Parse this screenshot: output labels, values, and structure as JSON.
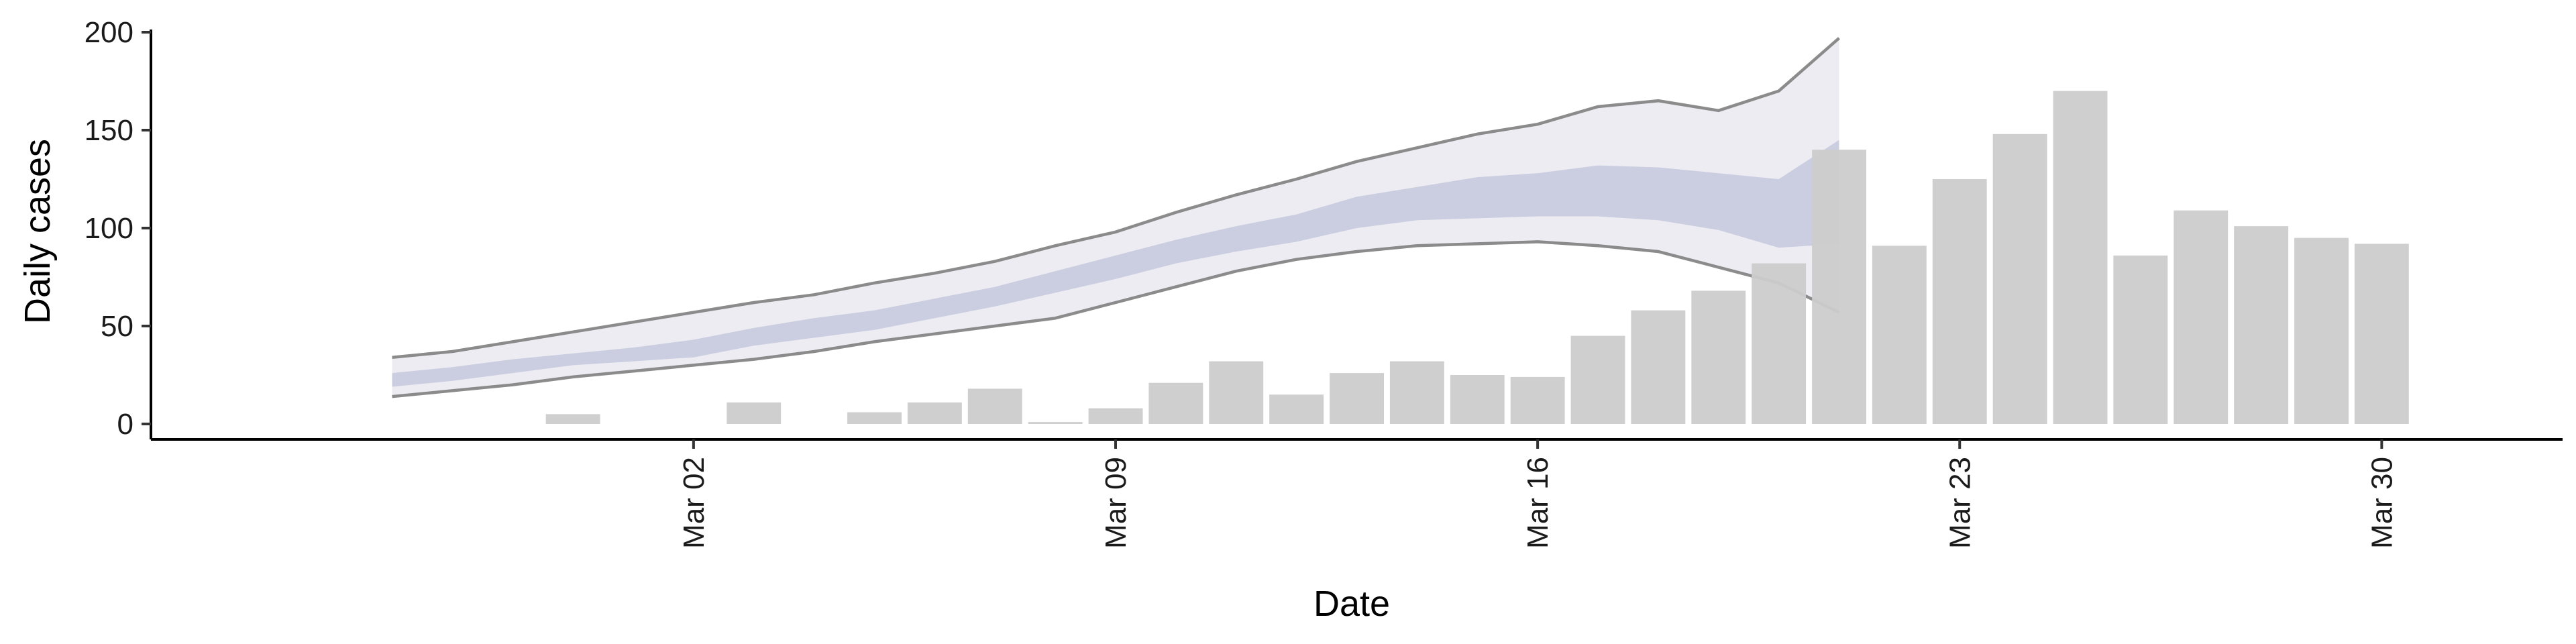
{
  "chart_data": {
    "type": "bar",
    "xlabel": "Date",
    "ylabel": "Daily cases",
    "ylim": [
      0,
      200
    ],
    "y_ticks": [
      0,
      50,
      100,
      150,
      200
    ],
    "x_ticks": [
      {
        "date": "2020-03-02",
        "label": "Mar 02"
      },
      {
        "date": "2020-03-09",
        "label": "Mar 09"
      },
      {
        "date": "2020-03-16",
        "label": "Mar 16"
      },
      {
        "date": "2020-03-23",
        "label": "Mar 23"
      },
      {
        "date": "2020-03-30",
        "label": "Mar 30"
      }
    ],
    "x_range": [
      "2020-02-22",
      "2020-04-02"
    ],
    "grid": false,
    "colors": {
      "bars": "#cccccc",
      "band_outer": "#e9e9f0",
      "band_inner": "#c3c6dc",
      "band_line": "#7f7f7f"
    },
    "bars": [
      {
        "date": "2020-02-29",
        "value": 5
      },
      {
        "date": "2020-03-03",
        "value": 11
      },
      {
        "date": "2020-03-05",
        "value": 6
      },
      {
        "date": "2020-03-06",
        "value": 11
      },
      {
        "date": "2020-03-07",
        "value": 18
      },
      {
        "date": "2020-03-08",
        "value": 1
      },
      {
        "date": "2020-03-09",
        "value": 8
      },
      {
        "date": "2020-03-10",
        "value": 21
      },
      {
        "date": "2020-03-11",
        "value": 32
      },
      {
        "date": "2020-03-12",
        "value": 15
      },
      {
        "date": "2020-03-13",
        "value": 26
      },
      {
        "date": "2020-03-14",
        "value": 32
      },
      {
        "date": "2020-03-15",
        "value": 25
      },
      {
        "date": "2020-03-16",
        "value": 24
      },
      {
        "date": "2020-03-17",
        "value": 45
      },
      {
        "date": "2020-03-18",
        "value": 58
      },
      {
        "date": "2020-03-19",
        "value": 68
      },
      {
        "date": "2020-03-20",
        "value": 82
      },
      {
        "date": "2020-03-21",
        "value": 140
      },
      {
        "date": "2020-03-22",
        "value": 91
      },
      {
        "date": "2020-03-23",
        "value": 125
      },
      {
        "date": "2020-03-24",
        "value": 148
      },
      {
        "date": "2020-03-25",
        "value": 170
      },
      {
        "date": "2020-03-26",
        "value": 86
      },
      {
        "date": "2020-03-27",
        "value": 109
      },
      {
        "date": "2020-03-28",
        "value": 101
      },
      {
        "date": "2020-03-29",
        "value": 95
      },
      {
        "date": "2020-03-30",
        "value": 92
      }
    ],
    "band": [
      {
        "date": "2020-02-26",
        "lo95": 14,
        "lo50": 19,
        "hi50": 26,
        "hi95": 34
      },
      {
        "date": "2020-02-27",
        "lo95": 17,
        "lo50": 22,
        "hi50": 29,
        "hi95": 37
      },
      {
        "date": "2020-02-28",
        "lo95": 20,
        "lo50": 26,
        "hi50": 33,
        "hi95": 42
      },
      {
        "date": "2020-02-29",
        "lo95": 24,
        "lo50": 30,
        "hi50": 36,
        "hi95": 47
      },
      {
        "date": "2020-03-01",
        "lo95": 27,
        "lo50": 32,
        "hi50": 39,
        "hi95": 52
      },
      {
        "date": "2020-03-02",
        "lo95": 30,
        "lo50": 34,
        "hi50": 43,
        "hi95": 57
      },
      {
        "date": "2020-03-03",
        "lo95": 33,
        "lo50": 40,
        "hi50": 49,
        "hi95": 62
      },
      {
        "date": "2020-03-04",
        "lo95": 37,
        "lo50": 44,
        "hi50": 54,
        "hi95": 66
      },
      {
        "date": "2020-03-05",
        "lo95": 42,
        "lo50": 48,
        "hi50": 58,
        "hi95": 72
      },
      {
        "date": "2020-03-06",
        "lo95": 46,
        "lo50": 54,
        "hi50": 64,
        "hi95": 77
      },
      {
        "date": "2020-03-07",
        "lo95": 50,
        "lo50": 60,
        "hi50": 70,
        "hi95": 83
      },
      {
        "date": "2020-03-08",
        "lo95": 54,
        "lo50": 67,
        "hi50": 78,
        "hi95": 91
      },
      {
        "date": "2020-03-09",
        "lo95": 62,
        "lo50": 74,
        "hi50": 86,
        "hi95": 98
      },
      {
        "date": "2020-03-10",
        "lo95": 70,
        "lo50": 82,
        "hi50": 94,
        "hi95": 108
      },
      {
        "date": "2020-03-11",
        "lo95": 78,
        "lo50": 88,
        "hi50": 101,
        "hi95": 117
      },
      {
        "date": "2020-03-12",
        "lo95": 84,
        "lo50": 93,
        "hi50": 107,
        "hi95": 125
      },
      {
        "date": "2020-03-13",
        "lo95": 88,
        "lo50": 100,
        "hi50": 116,
        "hi95": 134
      },
      {
        "date": "2020-03-14",
        "lo95": 91,
        "lo50": 104,
        "hi50": 121,
        "hi95": 141
      },
      {
        "date": "2020-03-15",
        "lo95": 92,
        "lo50": 105,
        "hi50": 126,
        "hi95": 148
      },
      {
        "date": "2020-03-16",
        "lo95": 93,
        "lo50": 106,
        "hi50": 128,
        "hi95": 153
      },
      {
        "date": "2020-03-17",
        "lo95": 91,
        "lo50": 106,
        "hi50": 132,
        "hi95": 162
      },
      {
        "date": "2020-03-18",
        "lo95": 88,
        "lo50": 104,
        "hi50": 131,
        "hi95": 165
      },
      {
        "date": "2020-03-19",
        "lo95": 80,
        "lo50": 99,
        "hi50": 128,
        "hi95": 160
      },
      {
        "date": "2020-03-20",
        "lo95": 72,
        "lo50": 90,
        "hi50": 125,
        "hi95": 170
      },
      {
        "date": "2020-03-21",
        "lo95": 57,
        "lo50": 92,
        "hi50": 145,
        "hi95": 197
      }
    ]
  }
}
